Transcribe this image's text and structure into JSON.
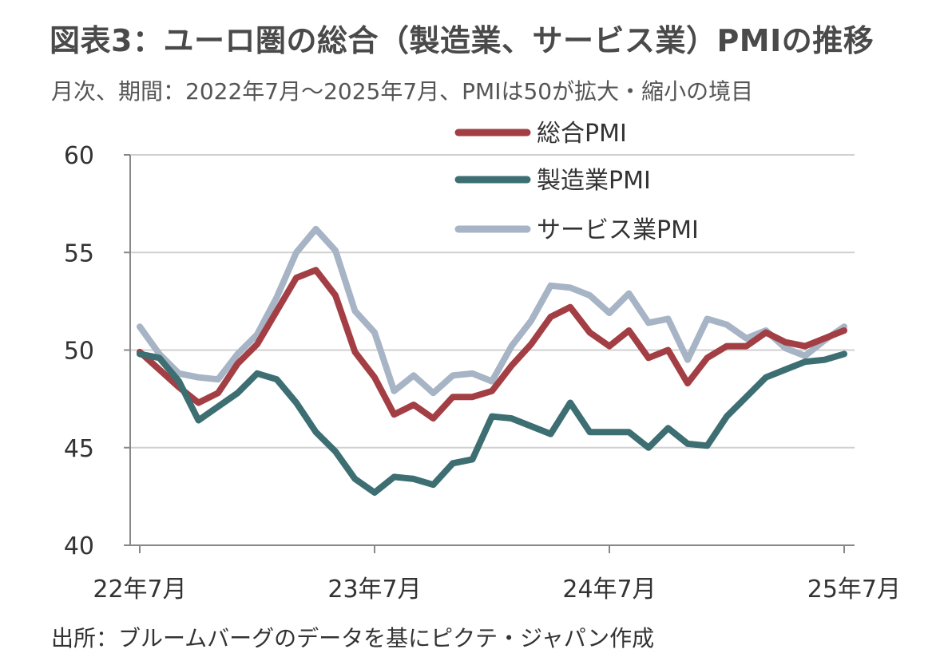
{
  "title": "図表3：ユーロ圏の総合（製造業、サービス業）PMIの推移",
  "subtitle": "月次、期間：2022年7月～2025年7月、PMIは50が拡大・縮小の境目",
  "source": "出所：ブルームバーグのデータを基にピクテ・ジャパン作成",
  "chart_data": {
    "type": "line",
    "title": "図表3：ユーロ圏の総合（製造業、サービス業）PMIの推移",
    "subtitle": "月次、期間：2022年7月～2025年7月、PMIは50が拡大・縮小の境目",
    "x": [
      "2022-07",
      "2022-08",
      "2022-09",
      "2022-10",
      "2022-11",
      "2022-12",
      "2023-01",
      "2023-02",
      "2023-03",
      "2023-04",
      "2023-05",
      "2023-06",
      "2023-07",
      "2023-08",
      "2023-09",
      "2023-10",
      "2023-11",
      "2023-12",
      "2024-01",
      "2024-02",
      "2024-03",
      "2024-04",
      "2024-05",
      "2024-06",
      "2024-07",
      "2024-08",
      "2024-09",
      "2024-10",
      "2024-11",
      "2024-12",
      "2025-01",
      "2025-02",
      "2025-03",
      "2025-04",
      "2025-05",
      "2025-06",
      "2025-07"
    ],
    "x_tick_labels": [
      {
        "index": 0,
        "label": "22年7月"
      },
      {
        "index": 12,
        "label": "23年7月"
      },
      {
        "index": 24,
        "label": "24年7月"
      },
      {
        "index": 36,
        "label": "25年7月"
      }
    ],
    "ylim": [
      40,
      60
    ],
    "y_ticks": [
      40,
      45,
      50,
      55,
      60
    ],
    "grid": true,
    "legend_position": "top-center",
    "series": [
      {
        "name": "総合PMI",
        "color": "#a33f44",
        "values": [
          49.9,
          49.0,
          48.1,
          47.3,
          47.8,
          49.3,
          50.3,
          52.0,
          53.7,
          54.1,
          52.8,
          49.9,
          48.6,
          46.7,
          47.2,
          46.5,
          47.6,
          47.6,
          47.9,
          49.2,
          50.3,
          51.7,
          52.2,
          50.9,
          50.2,
          51.0,
          49.6,
          50.0,
          48.3,
          49.6,
          50.2,
          50.2,
          50.9,
          50.4,
          50.2,
          50.6,
          51.0
        ]
      },
      {
        "name": "製造業PMI",
        "color": "#3c6e72",
        "values": [
          49.8,
          49.6,
          48.4,
          46.4,
          47.1,
          47.8,
          48.8,
          48.5,
          47.3,
          45.8,
          44.8,
          43.4,
          42.7,
          43.5,
          43.4,
          43.1,
          44.2,
          44.4,
          46.6,
          46.5,
          46.1,
          45.7,
          47.3,
          45.8,
          45.8,
          45.8,
          45.0,
          46.0,
          45.2,
          45.1,
          46.6,
          47.6,
          48.6,
          49.0,
          49.4,
          49.5,
          49.8
        ]
      },
      {
        "name": "サービス業PMI",
        "color": "#a7b4c5",
        "values": [
          51.2,
          49.8,
          48.8,
          48.6,
          48.5,
          49.8,
          50.8,
          52.7,
          55.0,
          56.2,
          55.1,
          52.0,
          50.9,
          47.9,
          48.7,
          47.8,
          48.7,
          48.8,
          48.4,
          50.2,
          51.5,
          53.3,
          53.2,
          52.8,
          51.9,
          52.9,
          51.4,
          51.6,
          49.5,
          51.6,
          51.3,
          50.6,
          51.0,
          50.1,
          49.7,
          50.5,
          51.2
        ]
      }
    ]
  }
}
